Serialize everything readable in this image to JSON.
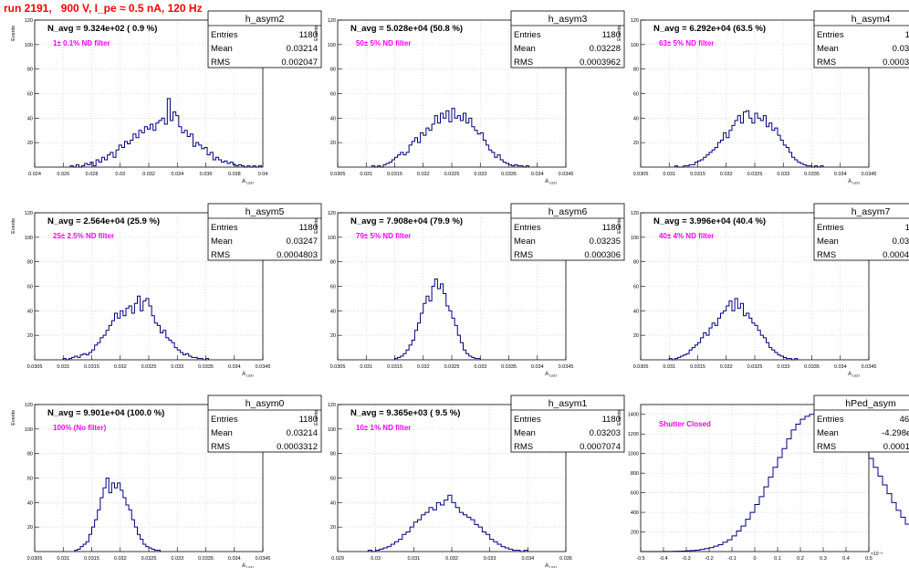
{
  "run_title": "run 2191,   900 V, I_pe ≈ 0.5 nA, 120 Hz",
  "colors": {
    "title": "#ff0000",
    "hist": "#000080",
    "label": "#ff00ff",
    "grid": "#c8c8c8"
  },
  "chart_data": [
    {
      "type": "histogram",
      "name": "h_asym2",
      "xlabel": "A_LED",
      "ylabel": "Events",
      "navg_label": "N_avg = 9.324e+02 ( 0.9 %)",
      "filter_label": "1± 0.1% ND filter",
      "stats": {
        "Entries": "1180",
        "Mean": "0.03214",
        "RMS": "0.002047"
      },
      "xlim": [
        0.024,
        0.04
      ],
      "ylim": [
        0,
        120
      ],
      "xticks": [
        "0.024",
        "0.026",
        "0.028",
        "0.03",
        "0.032",
        "0.034",
        "0.036",
        "0.038",
        "0.04"
      ],
      "yticks": [
        "20",
        "40",
        "60",
        "80",
        "100",
        "120"
      ],
      "bins_start": 0.0265,
      "bin_width": 0.0002,
      "counts": [
        1,
        0,
        2,
        0,
        1,
        3,
        2,
        4,
        1,
        6,
        4,
        8,
        6,
        10,
        12,
        8,
        14,
        18,
        16,
        21,
        19,
        22,
        27,
        24,
        30,
        28,
        33,
        31,
        35,
        30,
        36,
        38,
        40,
        35,
        56,
        38,
        45,
        42,
        33,
        28,
        30,
        25,
        27,
        17,
        20,
        18,
        15,
        16,
        10,
        12,
        6,
        8,
        6,
        4,
        5,
        3,
        4,
        2,
        1,
        2,
        1,
        0,
        1,
        0,
        1,
        0,
        1
      ]
    },
    {
      "type": "histogram",
      "name": "h_asym3",
      "xlabel": "A_LED",
      "ylabel": "Events",
      "navg_label": "N_avg = 5.028e+04 (50.8 %)",
      "filter_label": "50± 5% ND filter",
      "stats": {
        "Entries": "1180",
        "Mean": "0.03228",
        "RMS": "0.0003962"
      },
      "xlim": [
        0.0305,
        0.0345
      ],
      "ylim": [
        0,
        120
      ],
      "xticks": [
        "0.0305",
        "0.031",
        "0.0315",
        "0.032",
        "0.0325",
        "0.033",
        "0.0335",
        "0.034",
        "0.0345"
      ],
      "yticks": [
        "20",
        "40",
        "60",
        "80",
        "100",
        "120"
      ],
      "bins_start": 0.0311,
      "bin_width": 5e-05,
      "counts": [
        1,
        0,
        1,
        0,
        2,
        3,
        4,
        6,
        8,
        10,
        12,
        10,
        12,
        18,
        21,
        24,
        20,
        28,
        26,
        32,
        30,
        35,
        42,
        36,
        44,
        40,
        46,
        37,
        48,
        40,
        42,
        38,
        44,
        36,
        40,
        33,
        30,
        27,
        28,
        22,
        18,
        14,
        12,
        8,
        10,
        6,
        4,
        3,
        2,
        1,
        2,
        1,
        1,
        0,
        1
      ]
    },
    {
      "type": "histogram",
      "name": "h_asym4",
      "xlabel": "A_LED",
      "ylabel": "Events",
      "navg_label": "N_avg = 6.292e+04 (63.5 %)",
      "filter_label": "63± 5% ND filter",
      "stats": {
        "Entries": "1180",
        "Mean": "0.03236",
        "RMS": "0.0003974"
      },
      "xlim": [
        0.0305,
        0.0345
      ],
      "ylim": [
        0,
        120
      ],
      "xticks": [
        "0.0305",
        "0.031",
        "0.0315",
        "0.032",
        "0.0325",
        "0.033",
        "0.0335",
        "0.034",
        "0.0345"
      ],
      "yticks": [
        "20",
        "40",
        "60",
        "80",
        "100",
        "120"
      ],
      "bins_start": 0.0311,
      "bin_width": 5e-05,
      "counts": [
        1,
        0,
        0,
        1,
        1,
        2,
        2,
        4,
        5,
        6,
        8,
        10,
        12,
        14,
        16,
        20,
        22,
        28,
        24,
        30,
        34,
        38,
        42,
        36,
        45,
        46,
        40,
        36,
        44,
        40,
        38,
        42,
        33,
        36,
        30,
        32,
        26,
        22,
        18,
        16,
        12,
        8,
        6,
        4,
        3,
        2,
        1,
        1,
        0,
        1,
        0,
        1
      ]
    },
    {
      "type": "histogram",
      "name": "h_asym5",
      "xlabel": "A_LED",
      "ylabel": "Events",
      "navg_label": "N_avg = 2.564e+04 (25.9 %)",
      "filter_label": "25± 2.5% ND filter",
      "stats": {
        "Entries": "1180",
        "Mean": "0.03247",
        "RMS": "0.0004803"
      },
      "xlim": [
        0.0305,
        0.0345
      ],
      "ylim": [
        0,
        120
      ],
      "xticks": [
        "0.0305",
        "0.031",
        "0.0315",
        "0.032",
        "0.0325",
        "0.033",
        "0.0335",
        "0.034",
        "0.0345"
      ],
      "yticks": [
        "20",
        "40",
        "60",
        "80",
        "100",
        "120"
      ],
      "bins_start": 0.031,
      "bin_width": 5e-05,
      "counts": [
        1,
        0,
        1,
        2,
        3,
        2,
        4,
        5,
        4,
        6,
        8,
        12,
        14,
        18,
        20,
        24,
        28,
        32,
        38,
        34,
        40,
        36,
        42,
        44,
        38,
        46,
        52,
        40,
        48,
        50,
        44,
        36,
        30,
        28,
        22,
        24,
        18,
        16,
        14,
        10,
        8,
        6,
        4,
        5,
        3,
        2,
        2,
        1,
        1,
        0,
        1
      ]
    },
    {
      "type": "histogram",
      "name": "h_asym6",
      "xlabel": "A_LED",
      "ylabel": "Events",
      "navg_label": "N_avg = 7.908e+04 (79.9 %)",
      "filter_label": "79± 5% ND filter",
      "stats": {
        "Entries": "1180",
        "Mean": "0.03235",
        "RMS": "0.000306"
      },
      "xlim": [
        0.0305,
        0.0345
      ],
      "ylim": [
        0,
        120
      ],
      "xticks": [
        "0.0305",
        "0.031",
        "0.0315",
        "0.032",
        "0.0325",
        "0.033",
        "0.0335",
        "0.034",
        "0.0345"
      ],
      "yticks": [
        "20",
        "40",
        "60",
        "80",
        "100",
        "120"
      ],
      "bins_start": 0.0315,
      "bin_width": 5e-05,
      "counts": [
        1,
        2,
        3,
        5,
        8,
        12,
        16,
        24,
        30,
        38,
        46,
        52,
        48,
        60,
        66,
        58,
        62,
        54,
        44,
        40,
        34,
        28,
        20,
        14,
        8,
        5,
        3,
        2,
        1,
        1
      ]
    },
    {
      "type": "histogram",
      "name": "h_asym7",
      "xlabel": "A_LED",
      "ylabel": "Events",
      "navg_label": "N_avg = 3.996e+04 (40.4 %)",
      "filter_label": "40± 4% ND filter",
      "stats": {
        "Entries": "1180",
        "Mean": "0.03225",
        "RMS": "0.0004491"
      },
      "xlim": [
        0.0305,
        0.0345
      ],
      "ylim": [
        0,
        120
      ],
      "xticks": [
        "0.0305",
        "0.031",
        "0.0315",
        "0.032",
        "0.0325",
        "0.033",
        "0.0335",
        "0.034",
        "0.0345"
      ],
      "yticks": [
        "20",
        "40",
        "60",
        "80",
        "100",
        "120"
      ],
      "bins_start": 0.031,
      "bin_width": 5e-05,
      "counts": [
        1,
        0,
        1,
        2,
        3,
        4,
        5,
        8,
        10,
        12,
        14,
        18,
        22,
        20,
        26,
        30,
        28,
        34,
        38,
        40,
        44,
        48,
        40,
        50,
        42,
        46,
        36,
        38,
        34,
        30,
        28,
        24,
        20,
        18,
        14,
        10,
        8,
        6,
        4,
        3,
        2,
        1,
        1,
        0,
        1
      ]
    },
    {
      "type": "histogram",
      "name": "h_asym0",
      "xlabel": "A_LED",
      "ylabel": "Events",
      "navg_label": "N_avg = 9.901e+04 (100.0 %)",
      "filter_label": "100% (No filter)",
      "stats": {
        "Entries": "1180",
        "Mean": "0.03214",
        "RMS": "0.0003312"
      },
      "xlim": [
        0.0305,
        0.0345
      ],
      "ylim": [
        0,
        120
      ],
      "xticks": [
        "0.0305",
        "0.031",
        "0.0315",
        "0.032",
        "0.0325",
        "0.033",
        "0.0335",
        "0.034",
        "0.0345"
      ],
      "yticks": [
        "20",
        "40",
        "60",
        "80",
        "100",
        "120"
      ],
      "bins_start": 0.0312,
      "bin_width": 5e-05,
      "counts": [
        1,
        2,
        4,
        6,
        8,
        14,
        20,
        26,
        34,
        44,
        52,
        60,
        48,
        56,
        52,
        56,
        50,
        44,
        38,
        34,
        26,
        20,
        14,
        10,
        6,
        4,
        3,
        2,
        1,
        1
      ]
    },
    {
      "type": "histogram",
      "name": "h_asym1",
      "xlabel": "A_LED",
      "ylabel": "Events",
      "navg_label": "N_avg = 9.365e+03 ( 9.5 %)",
      "filter_label": "10± 1% ND filter",
      "stats": {
        "Entries": "1180",
        "Mean": "0.03203",
        "RMS": "0.0007074"
      },
      "xlim": [
        0.029,
        0.035
      ],
      "ylim": [
        0,
        120
      ],
      "xticks": [
        "0.029",
        "0.03",
        "0.031",
        "0.032",
        "0.033",
        "0.034",
        "0.035"
      ],
      "yticks": [
        "20",
        "40",
        "60",
        "80",
        "100",
        "120"
      ],
      "bins_start": 0.0298,
      "bin_width": 0.0001,
      "counts": [
        1,
        0,
        1,
        2,
        3,
        4,
        6,
        8,
        10,
        14,
        16,
        20,
        24,
        26,
        30,
        32,
        36,
        34,
        40,
        38,
        42,
        46,
        40,
        36,
        32,
        30,
        28,
        26,
        22,
        20,
        16,
        14,
        10,
        8,
        6,
        4,
        3,
        2,
        1,
        1,
        0,
        1
      ]
    },
    {
      "type": "histogram",
      "name": "hPed_asym",
      "xlabel": "",
      "ylabel": "Events",
      "navg_label": "",
      "filter_label": "Shutter Closed",
      "stats": {
        "Entries": "46084",
        "Mean": "-4.298e-07",
        "RMS": "0.0001186"
      },
      "xlim": [
        -0.5,
        0.5
      ],
      "ylim": [
        0,
        1500
      ],
      "xexp": "×10⁻³",
      "xticks": [
        "-0.5",
        "-0.4",
        "-0.3",
        "-0.2",
        "-0.1",
        "0",
        "0.1",
        "0.2",
        "0.3",
        "0.4",
        "0.5"
      ],
      "yticks": [
        "200",
        "400",
        "600",
        "800",
        "1000",
        "1200",
        "1400"
      ],
      "bins_start": -0.5,
      "bin_width": 0.02,
      "counts": [
        0,
        0,
        0,
        0,
        0,
        1,
        1,
        2,
        3,
        5,
        8,
        10,
        14,
        22,
        30,
        40,
        55,
        70,
        95,
        120,
        160,
        210,
        260,
        330,
        400,
        480,
        560,
        660,
        760,
        860,
        960,
        1050,
        1150,
        1240,
        1300,
        1350,
        1380,
        1400,
        1420,
        1410,
        1380,
        1420,
        1400,
        1380,
        1340,
        1300,
        1260,
        1200,
        1120,
        1040,
        950,
        860,
        770,
        680,
        590,
        500,
        420,
        350,
        280,
        220,
        170,
        130,
        100,
        75,
        55,
        40,
        28,
        20,
        14,
        10,
        6,
        4,
        3,
        2,
        1,
        1,
        0,
        0,
        0,
        0,
        0,
        0,
        0,
        0,
        0,
        0,
        0,
        0,
        0,
        0,
        0,
        0,
        0,
        0,
        0,
        0,
        0,
        0,
        0,
        0
      ]
    }
  ]
}
